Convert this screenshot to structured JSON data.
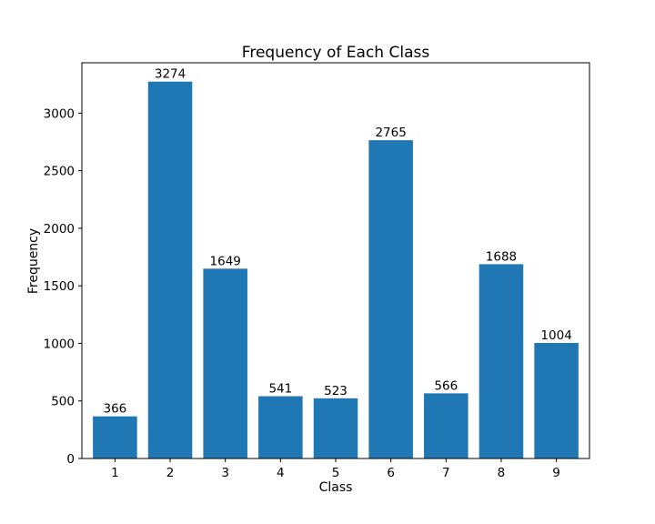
{
  "chart_data": {
    "type": "bar",
    "title": "Frequency of Each Class",
    "xlabel": "Class",
    "ylabel": "Frequency",
    "categories": [
      "1",
      "2",
      "3",
      "4",
      "5",
      "6",
      "7",
      "8",
      "9"
    ],
    "values": [
      366,
      3274,
      1649,
      541,
      523,
      2765,
      566,
      1688,
      1004
    ],
    "ylim": [
      0,
      3437.7
    ],
    "yticks": [
      0,
      500,
      1000,
      1500,
      2000,
      2500,
      3000
    ],
    "bar_color": "#1f77b4",
    "grid": false,
    "data_labels": true
  }
}
